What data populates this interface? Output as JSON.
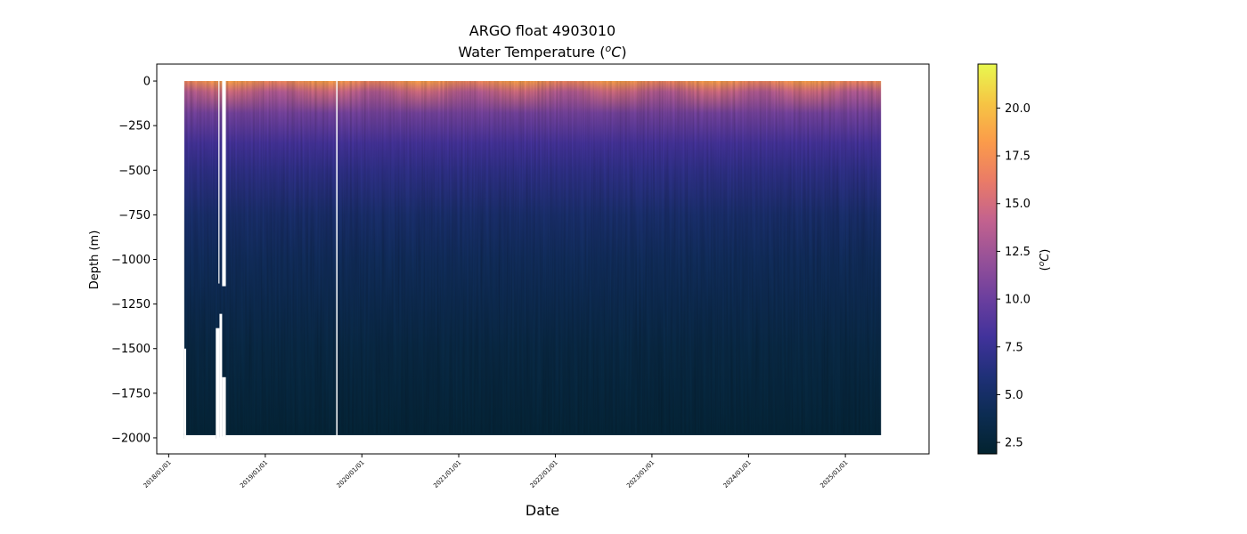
{
  "chart_data": {
    "type": "scatter",
    "title": "ARGO float 4903010",
    "subtitle_prefix": "Water Temperature (",
    "subtitle_sup": "o",
    "subtitle_unit": "C",
    "subtitle_suffix": ")",
    "xlabel": "Date",
    "ylabel": "Depth (m)",
    "xlim": [
      "2017-11-17",
      "2025-11-13"
    ],
    "ylim": [
      -2090,
      95
    ],
    "x_ticks": [
      "2018/01/01",
      "2019/01/01",
      "2020/01/01",
      "2021/01/01",
      "2022/01/01",
      "2023/01/01",
      "2024/01/01",
      "2025/01/01"
    ],
    "y_ticks": [
      0,
      -250,
      -500,
      -750,
      -1000,
      -1250,
      -1500,
      -1750,
      -2000
    ],
    "y_tick_labels": [
      "0",
      "−250",
      "−500",
      "−750",
      "−1000",
      "−1250",
      "−1500",
      "−1750",
      "−2000"
    ],
    "colorbar": {
      "label_sup": "o",
      "label_unit": "C",
      "range": [
        1.9,
        22.3
      ],
      "ticks": [
        2.5,
        5.0,
        7.5,
        10.0,
        12.5,
        15.0,
        17.5,
        20.0
      ],
      "tick_labels": [
        "2.5",
        "5.0",
        "7.5",
        "10.0",
        "12.5",
        "15.0",
        "17.5",
        "20.0"
      ],
      "colormap": "thermal",
      "stops": [
        "#03232f",
        "#0c2c52",
        "#1f3078",
        "#41329b",
        "#6c3f9e",
        "#975198",
        "#c3628e",
        "#ea7b67",
        "#fb9b4a",
        "#f6c544",
        "#e8f84f"
      ]
    },
    "data_start": "2018-03-01",
    "data_end": "2025-05-15",
    "profile_max_depth": [
      {
        "from": "2018-03-01",
        "to": "2018-03-08",
        "depth": -1500
      },
      {
        "from": "2018-03-08",
        "to": "2018-06-28",
        "depth": -1985
      },
      {
        "from": "2018-06-28",
        "to": "2018-07-12",
        "depth": -1385
      },
      {
        "from": "2018-07-12",
        "to": "2018-07-22",
        "depth": -1305
      },
      {
        "from": "2018-07-22",
        "to": "2018-08-05",
        "depth": -1660
      },
      {
        "from": "2018-08-05",
        "to": "2025-05-15",
        "depth": -1985
      }
    ],
    "data_gaps": [
      {
        "from": "2018-07-08",
        "to": "2018-07-12",
        "down_to": -1135
      },
      {
        "from": "2018-07-22",
        "to": "2018-08-05",
        "down_to": -1150
      },
      {
        "from": "2019-09-26",
        "to": "2019-10-01",
        "down_to": -2000
      }
    ],
    "surface_temperature_by_season": {
      "summer": 18.5,
      "winter": 16.8
    },
    "temperature_at_500m": 7.0,
    "temperature_at_1000m": 4.5,
    "temperature_at_2000m": 2.4
  }
}
